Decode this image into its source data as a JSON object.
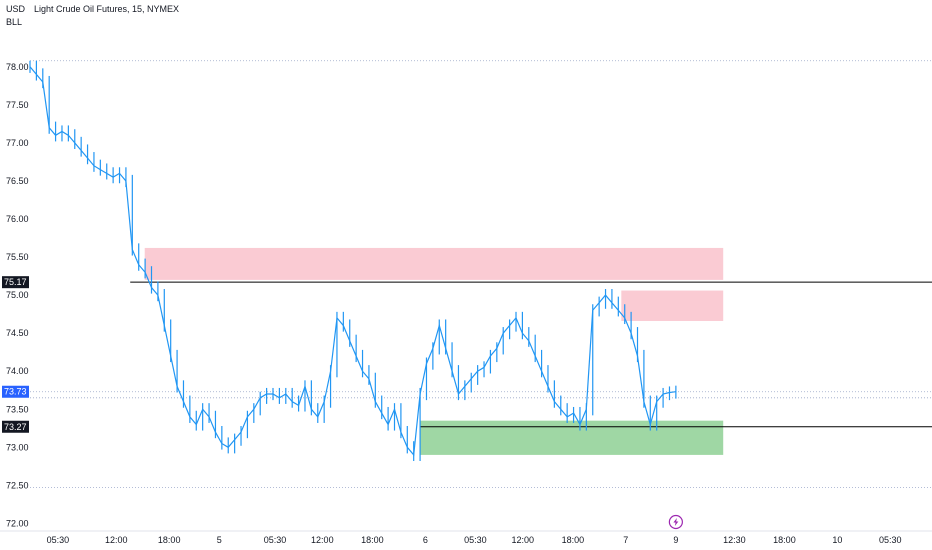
{
  "header": {
    "currency": "USD",
    "unit": "BLL",
    "title": "Light Crude Oil Futures, 15, NYMEX"
  },
  "colors": {
    "candle": "#2196f3",
    "resistance_zone": "#f7a9b5",
    "support_zone": "#7fca85",
    "level_line": "#000000",
    "price_badge": "#2962ff",
    "level_badge": "#131722",
    "grid_dotted": "#9aa6c8",
    "event_icon": "#9c27b0"
  },
  "event_marker": {
    "icon": "lightning-bolt-icon"
  },
  "chart_data": {
    "type": "line",
    "title": "Light Crude Oil Futures, 15, NYMEX",
    "xlabel": "",
    "ylabel": "",
    "ylim": [
      71.9,
      78.3
    ],
    "y_ticks": [
      "78.00",
      "77.50",
      "77.00",
      "76.50",
      "76.00",
      "75.50",
      "75.00",
      "74.50",
      "74.00",
      "73.50",
      "73.00",
      "72.50",
      "72.00"
    ],
    "x_tick_labels": [
      "05:30",
      "12:00",
      "18:00",
      "5",
      "05:30",
      "12:00",
      "18:00",
      "6",
      "05:30",
      "12:00",
      "18:00",
      "7",
      "9",
      "12:30",
      "18:00",
      "10",
      "05:30"
    ],
    "x_tick_index": [
      5,
      15.5,
      25,
      34,
      44,
      52.5,
      61.5,
      71,
      80,
      88.5,
      97.5,
      107,
      116,
      126.5,
      135.5,
      145,
      154.5
    ],
    "x_index_max": 162,
    "series": [
      {
        "values": [
          78.0,
          77.9,
          77.8,
          77.2,
          77.1,
          77.15,
          77.1,
          77.0,
          76.9,
          76.8,
          76.7,
          76.65,
          76.6,
          76.55,
          76.6,
          76.5,
          75.6,
          75.4,
          75.3,
          75.1,
          75.0,
          74.6,
          74.2,
          73.8,
          73.6,
          73.4,
          73.3,
          73.5,
          73.4,
          73.2,
          73.05,
          73.0,
          73.1,
          73.2,
          73.4,
          73.5,
          73.65,
          73.7,
          73.7,
          73.65,
          73.7,
          73.6,
          73.55,
          73.8,
          73.5,
          73.4,
          73.6,
          74.0,
          74.7,
          74.6,
          74.4,
          74.2,
          74.0,
          73.9,
          73.6,
          73.45,
          73.3,
          73.5,
          73.2,
          73.0,
          72.9,
          73.7,
          74.1,
          74.3,
          74.6,
          74.3,
          74.0,
          73.7,
          73.8,
          73.9,
          74.0,
          74.05,
          74.2,
          74.3,
          74.5,
          74.6,
          74.7,
          74.5,
          74.4,
          74.2,
          74.0,
          73.8,
          73.6,
          73.5,
          73.4,
          73.45,
          73.3,
          73.5,
          74.8,
          74.9,
          75.0,
          74.9,
          74.8,
          74.7,
          74.5,
          74.2,
          73.6,
          73.3,
          73.6,
          73.7,
          73.72,
          73.73
        ]
      }
    ],
    "zones": [
      {
        "kind": "resistance",
        "top": 75.62,
        "bottom": 75.2,
        "x_start": 20.6,
        "x_end": 124.5
      },
      {
        "kind": "resistance",
        "top": 75.06,
        "bottom": 74.66,
        "x_start": 106.2,
        "x_end": 124.5
      },
      {
        "kind": "support",
        "top": 73.35,
        "bottom": 72.9,
        "x_start": 70.0,
        "x_end": 124.5
      }
    ],
    "levels": [
      {
        "value": 75.17,
        "label": "75.17",
        "x_start": 18.0
      },
      {
        "value": 73.27,
        "label": "73.27",
        "x_start": 70.0
      }
    ],
    "dotted_levels": [
      78.08,
      73.73,
      73.65,
      72.47
    ],
    "current_price": {
      "value": 73.73,
      "label": "73.73"
    },
    "event_marker_x": 116
  }
}
